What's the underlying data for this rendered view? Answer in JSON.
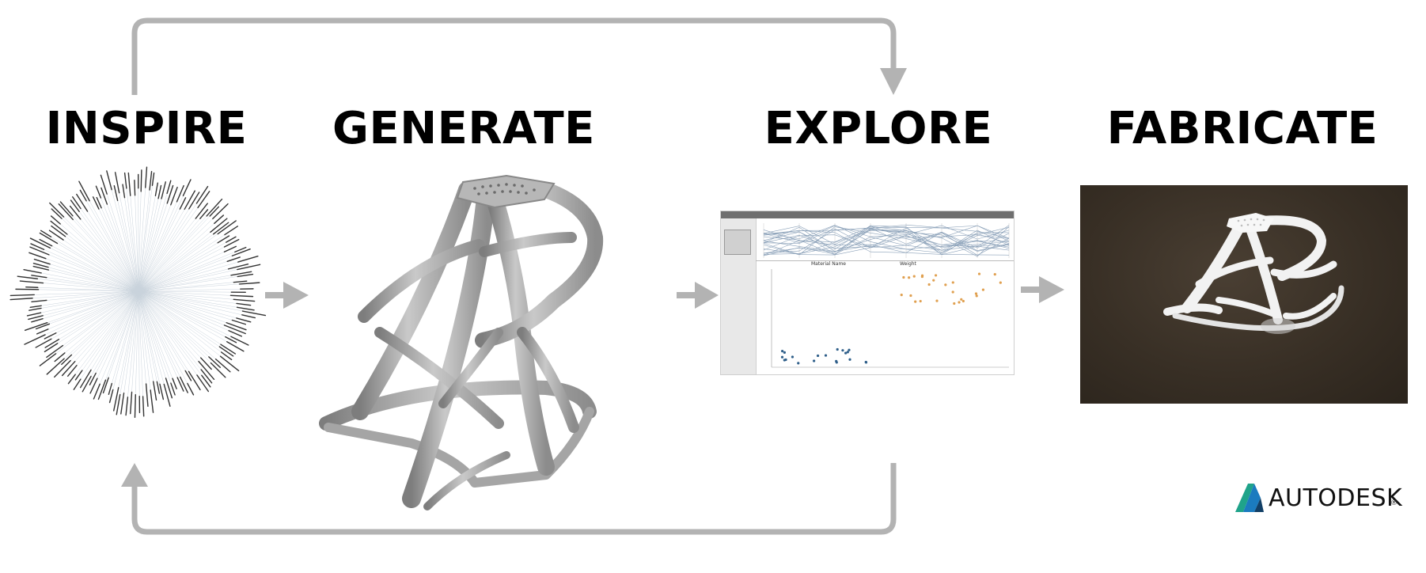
{
  "stages": {
    "inspire": "INSPIRE",
    "generate": "GENERATE",
    "explore": "EXPLORE",
    "fabricate": "FABRICATE"
  },
  "explore_app": {
    "x_field": "Material Name",
    "y_field": "Weight"
  },
  "logo": {
    "text": "AUTODESK",
    "mark": "®"
  },
  "colors": {
    "arrow": "#b3b3b3",
    "title": "#000000",
    "part": "#9a9a9a",
    "scatter_blue": "#2f5f8a",
    "scatter_orange": "#e0a050",
    "logo_teal": "#1fa38a",
    "logo_blue": "#1b7bbf"
  }
}
